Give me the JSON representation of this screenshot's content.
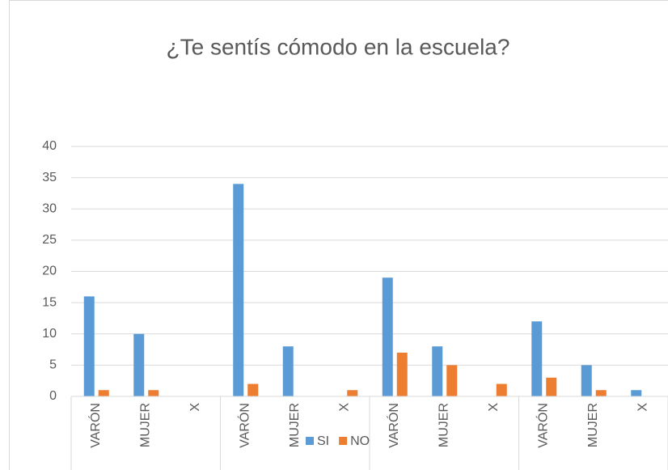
{
  "chart_data": {
    "type": "bar",
    "title": "¿Te sentís cómodo en la escuela?",
    "categories": [
      "VARÓN",
      "MUJER",
      "X",
      "VARÓN",
      "MUJER",
      "X",
      "VARÓN",
      "MUJER",
      "X",
      "VARÓN",
      "MUJER",
      "X"
    ],
    "series": [
      {
        "name": "SI",
        "color": "#5b9bd5",
        "values": [
          16,
          10,
          0,
          34,
          8,
          0,
          19,
          8,
          0,
          12,
          5,
          1
        ]
      },
      {
        "name": "NO",
        "color": "#ed7d31",
        "values": [
          1,
          1,
          0,
          2,
          0,
          1,
          7,
          5,
          2,
          3,
          1,
          0
        ]
      }
    ],
    "ylim": [
      0,
      40
    ],
    "yticks": [
      0,
      5,
      10,
      15,
      20,
      25,
      30,
      35,
      40
    ],
    "grid": true,
    "legend": "bottom"
  }
}
